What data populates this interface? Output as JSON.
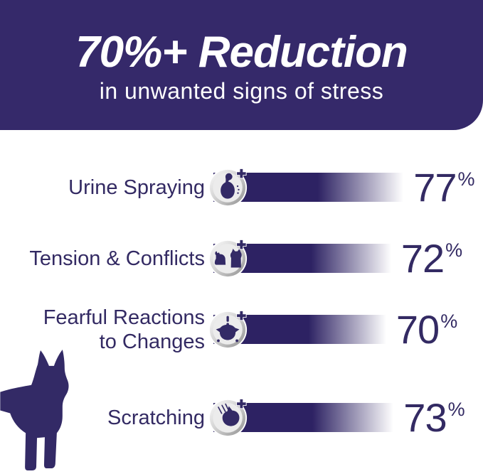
{
  "header": {
    "title": "70%+ Reduction",
    "subtitle": "in unwanted signs of stress",
    "bg_color": "#35296a",
    "text_color": "#ffffff"
  },
  "chart_data": {
    "type": "bar",
    "orientation": "horizontal",
    "title": "70%+ Reduction",
    "subtitle": "in unwanted signs of stress",
    "categories": [
      "Urine Spraying",
      "Tension & Conflicts",
      "Fearful Reactions to Changes",
      "Scratching"
    ],
    "values": [
      77,
      72,
      70,
      73
    ],
    "unit": "%",
    "bar_color": "#2d2263",
    "bar_style": "solid on left, fading to white on the right",
    "value_labels_position": "right of each bar",
    "legend": false,
    "grid": false
  },
  "rows": [
    {
      "label_line1": "Urine Spraying",
      "label_line2": "",
      "value": "77",
      "unit": "%",
      "icon": "cat-urine-spraying-icon"
    },
    {
      "label_line1": "Tension & Conflicts",
      "label_line2": "",
      "value": "72",
      "unit": "%",
      "icon": "cats-conflict-icon"
    },
    {
      "label_line1": "Fearful Reactions",
      "label_line2": "to Changes",
      "value": "70",
      "unit": "%",
      "icon": "fearful-cat-icon"
    },
    {
      "label_line1": "Scratching",
      "label_line2": "",
      "value": "73",
      "unit": "%",
      "icon": "cat-scratching-icon"
    }
  ],
  "decor": {
    "cat_silhouette": "standing cat silhouette at bottom left",
    "silhouette_color": "#332a66",
    "icon_plus_color": "#332a66",
    "icon_metal_light": "#fdfdfd",
    "icon_metal_dark": "#8f8f8f"
  }
}
